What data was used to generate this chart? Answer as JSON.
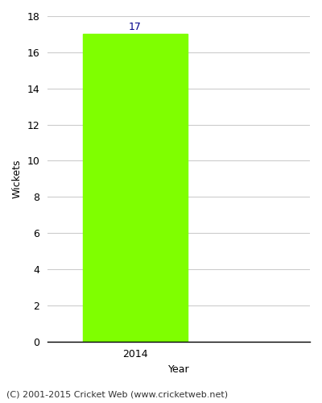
{
  "categories": [
    "2014"
  ],
  "values": [
    17
  ],
  "bar_color": "#7fff00",
  "bar_width": 0.6,
  "title": "",
  "xlabel": "Year",
  "ylabel": "Wickets",
  "ylim": [
    0,
    18
  ],
  "yticks": [
    0,
    2,
    4,
    6,
    8,
    10,
    12,
    14,
    16,
    18
  ],
  "annotation_color": "#00008b",
  "annotation_fontsize": 9,
  "axis_label_fontsize": 9,
  "tick_fontsize": 9,
  "footer_text": "(C) 2001-2015 Cricket Web (www.cricketweb.net)",
  "footer_fontsize": 8,
  "background_color": "#ffffff",
  "grid_color": "#cccccc"
}
